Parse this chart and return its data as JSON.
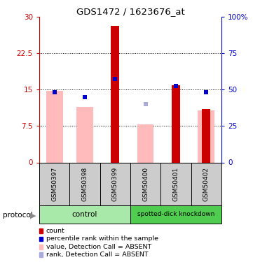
{
  "title": "GDS1472 / 1623676_at",
  "samples": [
    "GSM50397",
    "GSM50398",
    "GSM50399",
    "GSM50400",
    "GSM50401",
    "GSM50402"
  ],
  "red_bars": [
    0,
    0,
    28.2,
    0,
    16.0,
    11.0
  ],
  "pink_bars": [
    14.8,
    11.5,
    0,
    7.8,
    0,
    10.8
  ],
  "blue_squares_y_left": [
    14.5,
    13.5,
    17.2,
    0,
    15.8,
    14.5
  ],
  "blue_squares_show": [
    true,
    true,
    true,
    false,
    true,
    true
  ],
  "light_blue_squares_y_left": [
    0,
    0,
    0,
    12.0,
    0,
    0
  ],
  "light_blue_squares_show": [
    false,
    false,
    false,
    true,
    false,
    false
  ],
  "ylim_left": [
    0,
    30
  ],
  "ylim_right": [
    0,
    100
  ],
  "yticks_left": [
    0,
    7.5,
    15,
    22.5,
    30
  ],
  "ytick_labels_left": [
    "0",
    "7.5",
    "15",
    "22.5",
    "30"
  ],
  "yticks_right": [
    0,
    25,
    50,
    75,
    100
  ],
  "ytick_labels_right": [
    "0",
    "25",
    "50",
    "75",
    "100%"
  ],
  "hgrid_vals": [
    7.5,
    15,
    22.5
  ],
  "left_axis_color": "#cc0000",
  "right_axis_color": "#0000cc",
  "red_bar_color": "#cc0000",
  "pink_bar_color": "#ffbbbb",
  "blue_sq_color": "#0000cc",
  "light_blue_sq_color": "#aaaadd",
  "sample_box_color": "#cccccc",
  "control_color": "#a8e8a8",
  "knockdown_color": "#50cc50",
  "legend_items": [
    {
      "label": "count",
      "color": "#cc0000"
    },
    {
      "label": "percentile rank within the sample",
      "color": "#0000cc"
    },
    {
      "label": "value, Detection Call = ABSENT",
      "color": "#ffbbbb"
    },
    {
      "label": "rank, Detection Call = ABSENT",
      "color": "#aaaadd"
    }
  ],
  "protocol_label": "protocol"
}
